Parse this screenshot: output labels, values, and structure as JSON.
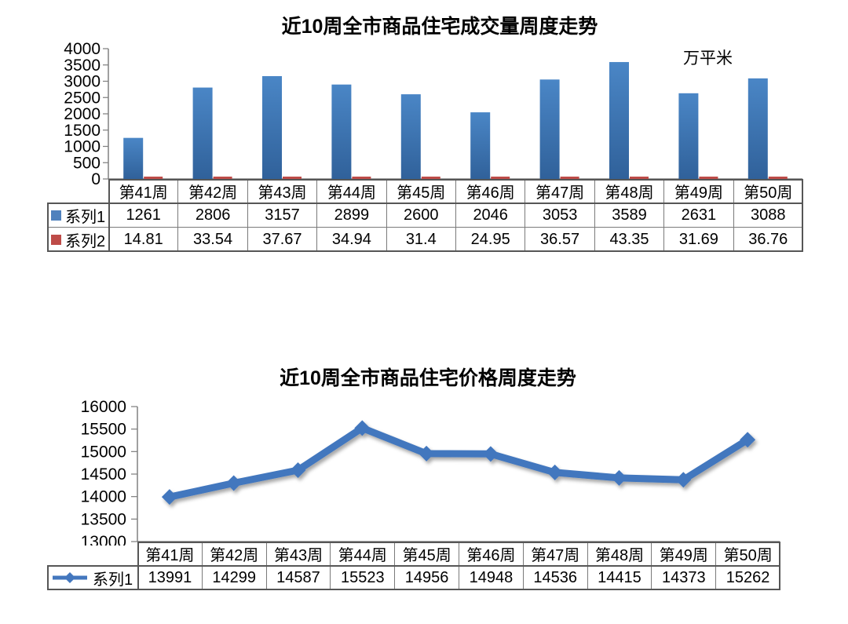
{
  "unit_note": "万平米",
  "chart_data": [
    {
      "type": "bar",
      "title": "近10周全市商品住宅成交量周度走势",
      "unit_label": "万平米",
      "categories": [
        "第41周",
        "第42周",
        "第43周",
        "第44周",
        "第45周",
        "第46周",
        "第47周",
        "第48周",
        "第49周",
        "第50周"
      ],
      "series": [
        {
          "name": "系列1",
          "marker": "square",
          "color": "#4F81BD",
          "color_dark": "#30619A",
          "color_light": "#4A86C6",
          "values": [
            1261,
            2806,
            3157,
            2899,
            2600,
            2046,
            3053,
            3589,
            2631,
            3088
          ]
        },
        {
          "name": "系列2",
          "marker": "square",
          "color": "#BE4B48",
          "values": [
            14.81,
            33.54,
            37.67,
            34.94,
            31.4,
            24.95,
            36.57,
            43.35,
            31.69,
            36.76
          ]
        }
      ],
      "y_axis": {
        "min": 0,
        "max": 4000,
        "step": 500,
        "tick_labels": [
          "0",
          "500",
          "1000",
          "1500",
          "2000",
          "2500",
          "3000",
          "3500",
          "4000"
        ]
      },
      "grid": false,
      "legend_position": "data-table-left",
      "data_table_attached": true
    },
    {
      "type": "line",
      "title": "近10周全市商品住宅价格周度走势",
      "unit_label": "",
      "categories": [
        "第41周",
        "第42周",
        "第43周",
        "第44周",
        "第45周",
        "第46周",
        "第47周",
        "第48周",
        "第49周",
        "第50周"
      ],
      "series": [
        {
          "name": "系列1",
          "marker": "diamond",
          "color": "#4377BE",
          "values": [
            13991,
            14299,
            14587,
            15523,
            14956,
            14948,
            14536,
            14415,
            14373,
            15262
          ]
        }
      ],
      "y_axis": {
        "min": 13000,
        "max": 16000,
        "step": 500,
        "tick_labels": [
          "13000",
          "13500",
          "14000",
          "14500",
          "15000",
          "15500",
          "16000"
        ]
      },
      "grid": false,
      "legend_position": "data-table-left",
      "data_table_attached": true
    }
  ]
}
